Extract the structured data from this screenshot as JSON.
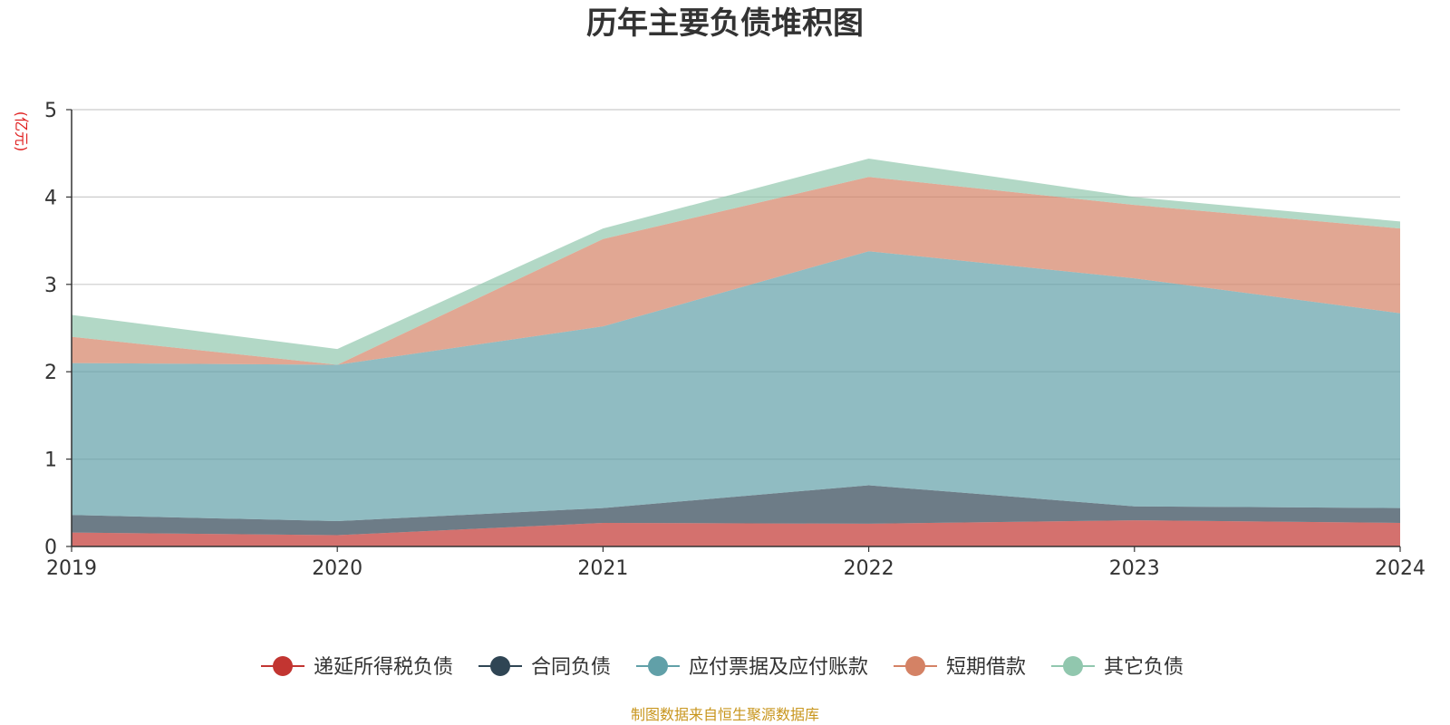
{
  "chart_data": {
    "type": "area",
    "stacked": true,
    "title": "历年主要负债堆积图",
    "unit_label": "(亿元)",
    "categories": [
      "2019",
      "2020",
      "2021",
      "2022",
      "2023",
      "2024"
    ],
    "ylim": [
      0,
      5
    ],
    "yticks": [
      "0",
      "1",
      "2",
      "3",
      "4",
      "5"
    ],
    "grid": true,
    "legend_position": "bottom",
    "series": [
      {
        "name": "递延所得税负债",
        "color": "#c23531",
        "values": [
          0.16,
          0.13,
          0.27,
          0.26,
          0.3,
          0.27
        ]
      },
      {
        "name": "合同负债",
        "color": "#2f4554",
        "values": [
          0.2,
          0.16,
          0.17,
          0.44,
          0.16,
          0.17
        ]
      },
      {
        "name": "应付票据及应付账款",
        "color": "#61a0a8",
        "values": [
          1.74,
          1.79,
          2.08,
          2.68,
          2.61,
          2.23
        ]
      },
      {
        "name": "短期借款",
        "color": "#d48265",
        "values": [
          0.3,
          0.0,
          1.0,
          0.85,
          0.84,
          0.97
        ]
      },
      {
        "name": "其它负债",
        "color": "#91c7ae",
        "values": [
          0.25,
          0.18,
          0.12,
          0.21,
          0.09,
          0.08
        ]
      }
    ]
  },
  "footer": {
    "source": "制图数据来自恒生聚源数据库"
  }
}
